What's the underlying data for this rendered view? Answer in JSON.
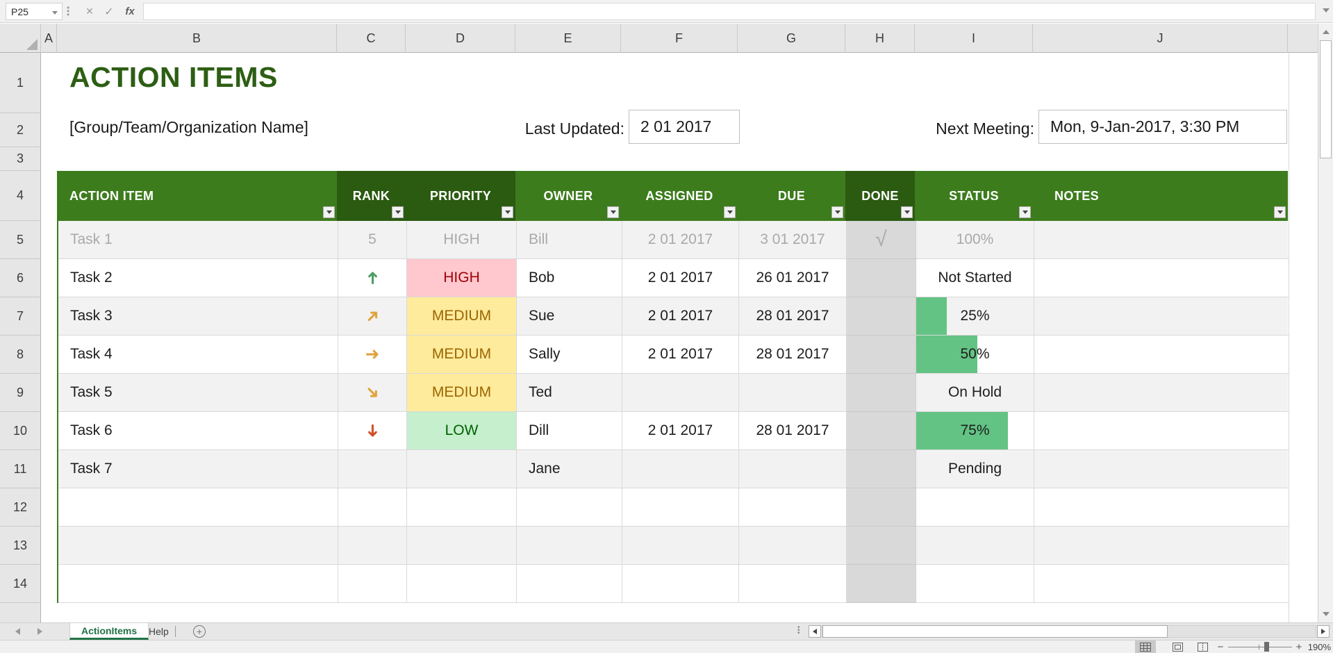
{
  "formula_bar": {
    "name_box_value": "P25",
    "fx_label": "fx",
    "formula_value": ""
  },
  "columns": {
    "letters": [
      "A",
      "B",
      "C",
      "D",
      "E",
      "F",
      "G",
      "H",
      "I",
      "J"
    ]
  },
  "row_headers": {
    "numbers": [
      "1",
      "2",
      "3",
      "4",
      "5",
      "6",
      "7",
      "8",
      "9",
      "10",
      "11",
      "12",
      "13",
      "14"
    ]
  },
  "header": {
    "title": "ACTION ITEMS",
    "org_name": "[Group/Team/Organization Name]",
    "last_updated_label": "Last Updated:",
    "last_updated_value": "2 01 2017",
    "next_meeting_label": "Next Meeting:",
    "next_meeting_value": "Mon, 9-Jan-2017, 3:30 PM"
  },
  "table": {
    "headers": [
      {
        "label": "ACTION ITEM",
        "dark": false,
        "align": "left"
      },
      {
        "label": "RANK",
        "dark": true,
        "align": "center"
      },
      {
        "label": "PRIORITY",
        "dark": true,
        "align": "center"
      },
      {
        "label": "OWNER",
        "dark": false,
        "align": "center"
      },
      {
        "label": "ASSIGNED",
        "dark": false,
        "align": "center"
      },
      {
        "label": "DUE",
        "dark": false,
        "align": "center"
      },
      {
        "label": "DONE",
        "dark": true,
        "align": "center"
      },
      {
        "label": "STATUS",
        "dark": false,
        "align": "center"
      },
      {
        "label": "NOTES",
        "dark": false,
        "align": "left"
      }
    ],
    "rows": [
      {
        "item": "Task 1",
        "rank_text": "5",
        "rank_icon": "",
        "priority": "HIGH",
        "priority_style": "plain",
        "owner": "Bill",
        "assigned": "2 01 2017",
        "due": "3 01 2017",
        "done": "√",
        "status": "100%",
        "bar_percent": 0,
        "completed": true,
        "notes": ""
      },
      {
        "item": "Task 2",
        "rank_text": "",
        "rank_icon": "up-arrow-icon",
        "priority": "HIGH",
        "priority_style": "high",
        "owner": "Bob",
        "assigned": "2 01 2017",
        "due": "26 01 2017",
        "done": "",
        "status": "Not Started",
        "bar_percent": 0,
        "completed": false,
        "notes": ""
      },
      {
        "item": "Task 3",
        "rank_text": "",
        "rank_icon": "up-right-arrow-icon",
        "priority": "MEDIUM",
        "priority_style": "medium",
        "owner": "Sue",
        "assigned": "2 01 2017",
        "due": "28 01 2017",
        "done": "",
        "status": "25%",
        "bar_percent": 26,
        "completed": false,
        "notes": ""
      },
      {
        "item": "Task 4",
        "rank_text": "",
        "rank_icon": "right-arrow-icon",
        "priority": "MEDIUM",
        "priority_style": "medium",
        "owner": "Sally",
        "assigned": "2 01 2017",
        "due": "28 01 2017",
        "done": "",
        "status": "50%",
        "bar_percent": 52,
        "completed": false,
        "notes": ""
      },
      {
        "item": "Task 5",
        "rank_text": "",
        "rank_icon": "down-right-arrow-icon",
        "priority": "MEDIUM",
        "priority_style": "medium",
        "owner": "Ted",
        "assigned": "",
        "due": "",
        "done": "",
        "status": "On Hold",
        "bar_percent": 0,
        "completed": false,
        "notes": ""
      },
      {
        "item": "Task 6",
        "rank_text": "",
        "rank_icon": "down-arrow-icon",
        "priority": "LOW",
        "priority_style": "low",
        "owner": "Dill",
        "assigned": "2 01 2017",
        "due": "28 01 2017",
        "done": "",
        "status": "75%",
        "bar_percent": 78,
        "completed": false,
        "notes": ""
      },
      {
        "item": "Task 7",
        "rank_text": "",
        "rank_icon": "",
        "priority": "",
        "priority_style": "plain",
        "owner": "Jane",
        "assigned": "",
        "due": "",
        "done": "",
        "status": "Pending",
        "bar_percent": 0,
        "completed": false,
        "notes": ""
      },
      {
        "item": "",
        "rank_text": "",
        "rank_icon": "",
        "priority": "",
        "priority_style": "plain",
        "owner": "",
        "assigned": "",
        "due": "",
        "done": "",
        "status": "",
        "bar_percent": 0,
        "completed": false,
        "notes": ""
      },
      {
        "item": "",
        "rank_text": "",
        "rank_icon": "",
        "priority": "",
        "priority_style": "plain",
        "owner": "",
        "assigned": "",
        "due": "",
        "done": "",
        "status": "",
        "bar_percent": 0,
        "completed": false,
        "notes": ""
      },
      {
        "item": "",
        "rank_text": "",
        "rank_icon": "",
        "priority": "",
        "priority_style": "plain",
        "owner": "",
        "assigned": "",
        "due": "",
        "done": "",
        "status": "",
        "bar_percent": 0,
        "completed": false,
        "notes": ""
      }
    ]
  },
  "sheet_tabs": {
    "items": [
      {
        "label": "ActionItems",
        "active": true
      },
      {
        "label": "Help",
        "active": false
      }
    ]
  },
  "status_bar": {
    "zoom_level": "190%"
  },
  "colors": {
    "header_green": "#3d7c1d",
    "header_dark_green": "#2b5a11",
    "title_green": "#2d5e14",
    "band_gray": "#f2f2f2",
    "done_gray": "#d9d9d9",
    "bad_fill": "#ffc7ce",
    "bad_text": "#9c0006",
    "neutral_fill": "#ffeb9c",
    "neutral_text": "#9c6500",
    "good_fill": "#c6efce",
    "good_text": "#006100",
    "data_bar_green": "#63c384",
    "active_tab_green": "#217346"
  }
}
